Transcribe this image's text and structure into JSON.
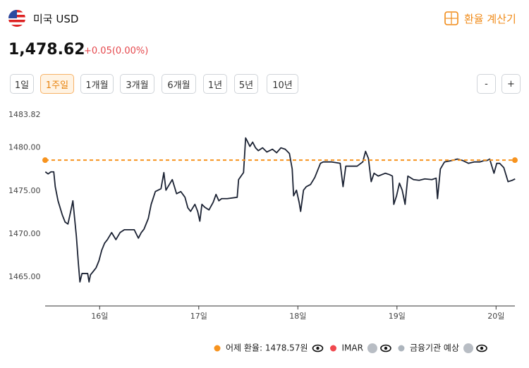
{
  "header": {
    "currency": "미국 USD",
    "calculator": "환율 계산기",
    "rate": "1,478.62",
    "change": "+0.05(0.00%)"
  },
  "periods": [
    "1일",
    "1주일",
    "1개월",
    "3개월",
    "6개월",
    "1년",
    "5년",
    "10년"
  ],
  "selected_period": 1,
  "zoom": [
    "-",
    "+"
  ],
  "chart_data": {
    "type": "line",
    "x": [
      15.452,
      15.48,
      15.509,
      15.537,
      15.552,
      15.58,
      15.623,
      15.651,
      15.68,
      15.708,
      15.73,
      15.737,
      15.765,
      15.786,
      15.801,
      15.822,
      15.851,
      15.879,
      15.893,
      15.907,
      15.936,
      15.964,
      15.993,
      16.021,
      16.05,
      16.078,
      16.121,
      16.164,
      16.206,
      16.249,
      16.349,
      16.391,
      16.42,
      16.448,
      16.491,
      16.52,
      16.562,
      16.619,
      16.648,
      16.669,
      16.69,
      16.733,
      16.776,
      16.819,
      16.861,
      16.89,
      16.918,
      16.961,
      16.989,
      17.011,
      17.032,
      17.06,
      17.103,
      17.146,
      17.174,
      17.203,
      17.231,
      17.288,
      17.388,
      17.402,
      17.452,
      17.473,
      17.488,
      17.516,
      17.544,
      17.573,
      17.601,
      17.644,
      17.687,
      17.744,
      17.786,
      17.829,
      17.872,
      17.915,
      17.943,
      17.957,
      17.986,
      18.014,
      18.028,
      18.057,
      18.085,
      18.128,
      18.171,
      18.228,
      18.256,
      18.342,
      18.427,
      18.456,
      18.484,
      18.541,
      18.598,
      18.655,
      18.683,
      18.712,
      18.74,
      18.769,
      18.811,
      18.883,
      18.925,
      18.954,
      18.968,
      18.996,
      19.025,
      19.053,
      19.082,
      19.11,
      19.167,
      19.224,
      19.281,
      19.352,
      19.395,
      19.409,
      19.438,
      19.48,
      19.552,
      19.609,
      19.665,
      19.722,
      19.779,
      19.836,
      19.879,
      19.907,
      19.936,
      19.979,
      20.007,
      20.036,
      20.078,
      20.093,
      20.121,
      20.164,
      20.192
    ],
    "series": [
      {
        "name": "USD",
        "color": "#1b2233",
        "values": [
          1477.21,
          1476.97,
          1477.21,
          1477.21,
          1475.49,
          1473.85,
          1472.21,
          1471.39,
          1471.15,
          1472.62,
          1473.85,
          1473.03,
          1469.75,
          1466.48,
          1464.43,
          1465.41,
          1465.41,
          1465.41,
          1464.43,
          1465.25,
          1465.66,
          1466.07,
          1466.89,
          1468.11,
          1468.93,
          1469.34,
          1470.16,
          1469.34,
          1470.16,
          1470.49,
          1470.49,
          1469.51,
          1470.16,
          1470.57,
          1471.8,
          1473.44,
          1474.92,
          1475.25,
          1477.13,
          1475.08,
          1475.49,
          1476.31,
          1474.67,
          1474.92,
          1474.26,
          1473.03,
          1472.62,
          1473.44,
          1472.62,
          1471.48,
          1473.44,
          1473.11,
          1472.79,
          1473.69,
          1474.59,
          1473.85,
          1474.1,
          1474.1,
          1474.26,
          1476.31,
          1477.13,
          1481.15,
          1480.82,
          1480.16,
          1480.66,
          1480.0,
          1479.67,
          1480.0,
          1479.51,
          1479.84,
          1479.43,
          1480.0,
          1479.84,
          1479.34,
          1477.54,
          1474.43,
          1475.08,
          1473.61,
          1472.62,
          1475.08,
          1475.49,
          1475.74,
          1476.56,
          1478.2,
          1478.36,
          1478.36,
          1478.2,
          1475.49,
          1477.87,
          1477.87,
          1477.87,
          1478.36,
          1479.59,
          1478.77,
          1476.07,
          1477.05,
          1476.72,
          1477.05,
          1476.89,
          1476.72,
          1473.44,
          1474.43,
          1475.9,
          1475.08,
          1473.44,
          1476.72,
          1476.31,
          1476.23,
          1476.39,
          1476.31,
          1476.48,
          1474.1,
          1477.54,
          1478.36,
          1478.52,
          1478.69,
          1478.52,
          1478.2,
          1478.36,
          1478.36,
          1478.52,
          1478.52,
          1478.69,
          1477.05,
          1478.2,
          1478.2,
          1477.7,
          1477.13,
          1476.07,
          1476.23,
          1476.39
        ]
      }
    ],
    "reference": {
      "value": 1478.57,
      "color": "#f7931e"
    },
    "xlim": [
      15.45,
      20.19
    ],
    "xticks": [
      {
        "value": 16,
        "label": "16일"
      },
      {
        "value": 17,
        "label": "17일"
      },
      {
        "value": 18,
        "label": "18일"
      },
      {
        "value": 19,
        "label": "19일"
      },
      {
        "value": 20,
        "label": "20일"
      }
    ],
    "ylim": [
      1461.64,
      1483.82
    ],
    "yticks": [
      {
        "value": 1465,
        "label": "1465.00"
      },
      {
        "value": 1470,
        "label": "1470.00"
      },
      {
        "value": 1475,
        "label": "1475.00"
      },
      {
        "value": 1480,
        "label": "1480.00"
      },
      1483.82
    ],
    "grid": false,
    "legend": [
      {
        "name": "어제 환율: 1478.57원",
        "color": "#f7931e"
      },
      {
        "name": "IMAR",
        "color": "#f0484e"
      },
      {
        "name": "금융기관 예상",
        "color": "#adb5bd"
      }
    ]
  }
}
